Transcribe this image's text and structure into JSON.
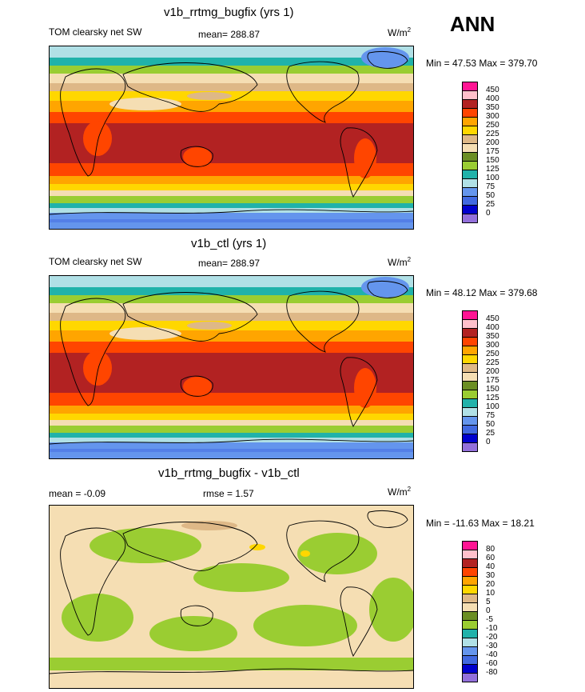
{
  "season": "ANN",
  "panels": [
    {
      "title": "v1b_rrtmg_bugfix (yrs 1)",
      "left_label": "TOM clearsky net SW",
      "stat_label": "mean= 288.87",
      "units_base": "W/m",
      "units_exp": "2",
      "minmax": "Min =  47.53 Max = 379.70",
      "colorbar_labels": [
        "450",
        "400",
        "350",
        "300",
        "250",
        "225",
        "200",
        "175",
        "150",
        "125",
        "100",
        "75",
        "50",
        "25",
        "0"
      ]
    },
    {
      "title": "v1b_ctl (yrs 1)",
      "left_label": "TOM clearsky net SW",
      "stat_label": "mean= 288.97",
      "units_base": "W/m",
      "units_exp": "2",
      "minmax": "Min =  48.12 Max = 379.68",
      "colorbar_labels": [
        "450",
        "400",
        "350",
        "300",
        "250",
        "225",
        "200",
        "175",
        "150",
        "125",
        "100",
        "75",
        "50",
        "25",
        "0"
      ]
    },
    {
      "title": "v1b_rrtmg_bugfix - v1b_ctl",
      "left_label": "mean =  -0.09",
      "stat_label": "rmse =   1.57",
      "units_base": "W/m",
      "units_exp": "2",
      "minmax": "Min = -11.63 Max =  18.21",
      "colorbar_labels": [
        "80",
        "60",
        "40",
        "30",
        "20",
        "10",
        "5",
        "0",
        "-5",
        "-10",
        "-20",
        "-30",
        "-40",
        "-60",
        "-80"
      ]
    }
  ],
  "colors": {
    "c0": "#9370db",
    "c1": "#0000cd",
    "c2": "#4169e1",
    "c3": "#6495ed",
    "c4": "#b0e0e6",
    "c5": "#20b2aa",
    "c6": "#9acd32",
    "c7": "#6b8e23",
    "c8": "#f5deb3",
    "c9": "#deb887",
    "c10": "#ffd700",
    "c11": "#ffa500",
    "c12": "#ff4500",
    "c13": "#b22222",
    "c14": "#ffc0cb",
    "c15": "#ff1493"
  },
  "chart_data": [
    {
      "type": "heatmap",
      "title": "v1b_rrtmg_bugfix (yrs 1)",
      "variable": "TOM clearsky net SW",
      "units": "W/m2",
      "mean": 288.87,
      "min": 47.53,
      "max": 379.7,
      "contour_levels": [
        0,
        25,
        50,
        75,
        100,
        125,
        150,
        175,
        200,
        225,
        250,
        300,
        350,
        400,
        450
      ],
      "zonal_bands_value_by_latitude": [
        {
          "lat_range": [
            60,
            90
          ],
          "value": 120
        },
        {
          "lat_range": [
            40,
            60
          ],
          "value": 200
        },
        {
          "lat_range": [
            20,
            40
          ],
          "value": 300
        },
        {
          "lat_range": [
            -20,
            20
          ],
          "value": 360
        },
        {
          "lat_range": [
            -40,
            -20
          ],
          "value": 300
        },
        {
          "lat_range": [
            -60,
            -40
          ],
          "value": 175
        },
        {
          "lat_range": [
            -90,
            -60
          ],
          "value": 60
        }
      ]
    },
    {
      "type": "heatmap",
      "title": "v1b_ctl (yrs 1)",
      "variable": "TOM clearsky net SW",
      "units": "W/m2",
      "mean": 288.97,
      "min": 48.12,
      "max": 379.68,
      "contour_levels": [
        0,
        25,
        50,
        75,
        100,
        125,
        150,
        175,
        200,
        225,
        250,
        300,
        350,
        400,
        450
      ],
      "zonal_bands_value_by_latitude": [
        {
          "lat_range": [
            60,
            90
          ],
          "value": 120
        },
        {
          "lat_range": [
            40,
            60
          ],
          "value": 200
        },
        {
          "lat_range": [
            20,
            40
          ],
          "value": 300
        },
        {
          "lat_range": [
            -20,
            20
          ],
          "value": 360
        },
        {
          "lat_range": [
            -40,
            -20
          ],
          "value": 300
        },
        {
          "lat_range": [
            -60,
            -40
          ],
          "value": 175
        },
        {
          "lat_range": [
            -90,
            -60
          ],
          "value": 60
        }
      ]
    },
    {
      "type": "heatmap",
      "title": "v1b_rrtmg_bugfix - v1b_ctl",
      "units": "W/m2",
      "mean": -0.09,
      "rmse": 1.57,
      "min": -11.63,
      "max": 18.21,
      "contour_levels": [
        -80,
        -60,
        -40,
        -30,
        -20,
        -10,
        -5,
        0,
        5,
        10,
        20,
        30,
        40,
        60,
        80
      ],
      "dominant_values": [
        -2,
        2
      ]
    }
  ]
}
